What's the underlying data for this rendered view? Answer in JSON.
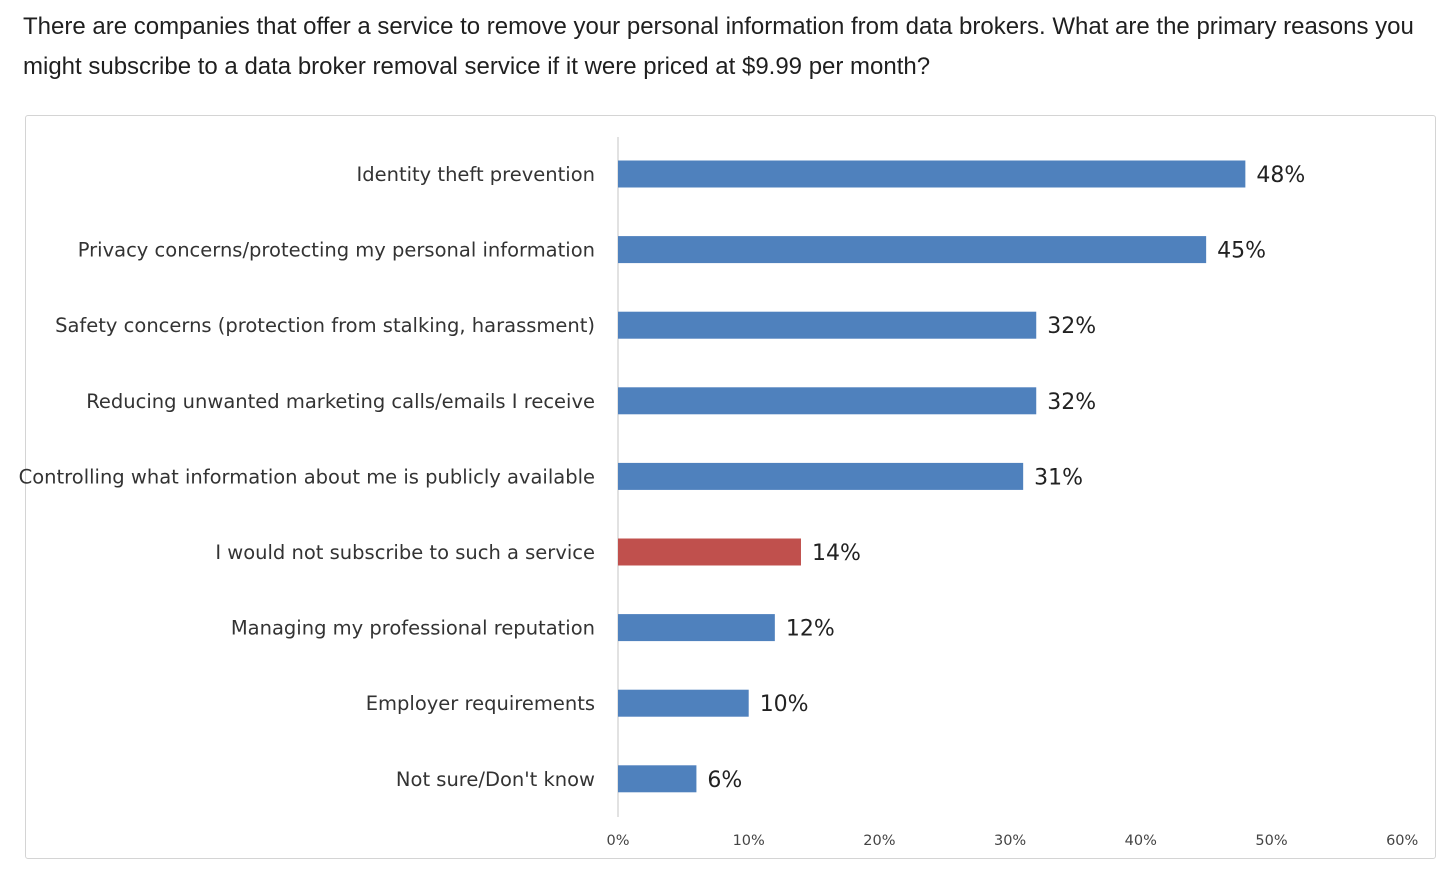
{
  "question": "There are companies that offer a service to remove your personal information from data brokers. What are the primary reasons you might subscribe to a data broker removal service if it were priced at $9.99 per month?",
  "chart_data": {
    "type": "bar",
    "orientation": "horizontal",
    "title": "",
    "xlabel": "",
    "ylabel": "",
    "xlim": [
      0,
      60
    ],
    "x_ticks": [
      0,
      10,
      20,
      30,
      40,
      50,
      60
    ],
    "x_tick_labels": [
      "0%",
      "10%",
      "20%",
      "30%",
      "40%",
      "50%",
      "60%"
    ],
    "grid": false,
    "legend": "none",
    "categories": [
      "Identity theft prevention",
      "Privacy concerns/protecting my personal information",
      "Safety concerns (protection from stalking, harassment)",
      "Reducing unwanted marketing calls/emails I receive",
      "Controlling what information about me is publicly available",
      "I would not subscribe to such a service",
      "Managing my professional reputation",
      "Employer requirements",
      "Not sure/Don't know"
    ],
    "values": [
      48,
      45,
      32,
      32,
      31,
      14,
      12,
      10,
      6
    ],
    "value_labels": [
      "48%",
      "45%",
      "32%",
      "32%",
      "31%",
      "14%",
      "12%",
      "10%",
      "6%"
    ],
    "bar_colors": [
      "#4f81bd",
      "#4f81bd",
      "#4f81bd",
      "#4f81bd",
      "#4f81bd",
      "#c0504d",
      "#4f81bd",
      "#4f81bd",
      "#4f81bd"
    ],
    "axis_color": "#d9d9d9"
  }
}
